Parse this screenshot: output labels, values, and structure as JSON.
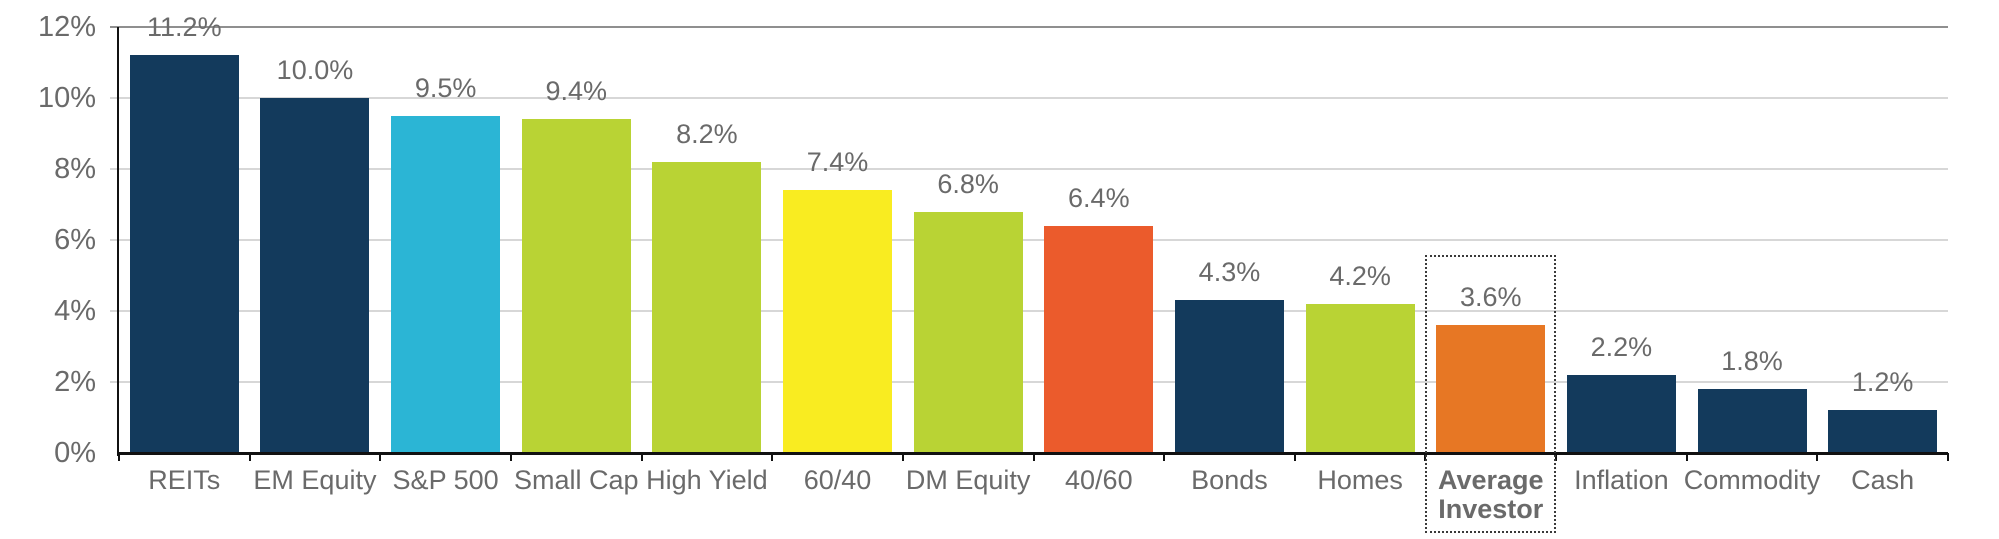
{
  "chart_data": {
    "type": "bar",
    "title": "",
    "categories": [
      "REITs",
      "EM Equity",
      "S&P 500",
      "Small Cap",
      "High Yield",
      "60/40",
      "DM Equity",
      "40/60",
      "Bonds",
      "Homes",
      "Average Investor",
      "Inflation",
      "Commodity",
      "Cash"
    ],
    "values": [
      11.2,
      10.0,
      9.5,
      9.4,
      8.2,
      7.4,
      6.8,
      6.4,
      4.3,
      4.2,
      3.6,
      2.2,
      1.8,
      1.2
    ],
    "value_labels": [
      "11.2%",
      "10.0%",
      "9.5%",
      "9.4%",
      "8.2%",
      "7.4%",
      "6.8%",
      "6.4%",
      "4.3%",
      "4.2%",
      "3.6%",
      "2.2%",
      "1.8%",
      "1.2%"
    ],
    "bar_colors": [
      "#133A5C",
      "#133A5C",
      "#2BB5D5",
      "#B9D334",
      "#B9D334",
      "#F9EC21",
      "#B9D334",
      "#EB5B2C",
      "#133A5C",
      "#B9D334",
      "#E77724",
      "#133A5C",
      "#133A5C",
      "#133A5C"
    ],
    "highlight_index": 10,
    "highlight_style": "dotted-box",
    "xlabel": "",
    "ylabel": "",
    "ylim": [
      0,
      12
    ],
    "ytick_step": 2,
    "ytick_labels": [
      "0%",
      "2%",
      "4%",
      "6%",
      "8%",
      "10%",
      "12%"
    ],
    "grid": true,
    "legend": "none",
    "palette": {
      "navy": "#133A5C",
      "cyan": "#2BB5D5",
      "lime": "#B9D334",
      "yellow": "#F9EC21",
      "red_orange": "#EB5B2C",
      "orange": "#E77724"
    },
    "style_colors": {
      "background": "#FFFFFF",
      "text": "#6A6A6A",
      "grid": "#D7D7D7",
      "grid_top": "#8F8F8F",
      "axis": "#111111",
      "highlight_border": "#3A3A3A"
    }
  }
}
